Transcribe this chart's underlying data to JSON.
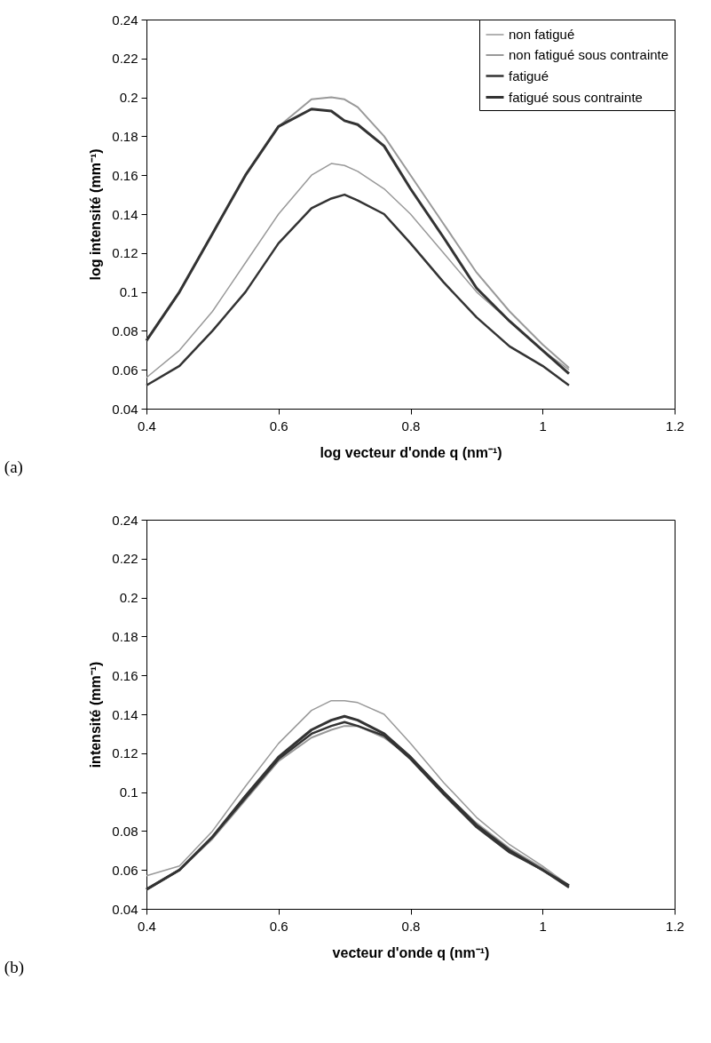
{
  "chart_data": [
    {
      "type": "line",
      "xlabel": "log vecteur d'onde q (nm⁻¹)",
      "ylabel": "log intensité (mm⁻¹)",
      "annotations": [
        "(a)"
      ],
      "xlim": [
        0.4,
        1.2
      ],
      "xticks": [
        0.4,
        0.6,
        0.8,
        1,
        1.2
      ],
      "ylim": [
        0.04,
        0.24
      ],
      "yticks": [
        0.04,
        0.06,
        0.08,
        0.1,
        0.12,
        0.14,
        0.16,
        0.18,
        0.2,
        0.22,
        0.24
      ],
      "legend": "top right",
      "grid": false,
      "marker": "none",
      "line_style": "solid",
      "x": [
        0.4,
        0.45,
        0.5,
        0.55,
        0.6,
        0.65,
        0.68,
        0.7,
        0.72,
        0.76,
        0.8,
        0.85,
        0.9,
        0.95,
        1.0,
        1.04
      ],
      "series": [
        {
          "name": "non fatigué",
          "color": "#999999",
          "values": [
            0.056,
            0.07,
            0.09,
            0.115,
            0.14,
            0.16,
            0.166,
            0.165,
            0.162,
            0.153,
            0.14,
            0.12,
            0.1,
            0.085,
            0.07,
            0.06
          ]
        },
        {
          "name": "non fatigué sous contrainte",
          "color": "#999999",
          "values": [
            0.075,
            0.1,
            0.13,
            0.16,
            0.185,
            0.199,
            0.2,
            0.199,
            0.195,
            0.18,
            0.16,
            0.135,
            0.11,
            0.09,
            0.073,
            0.061
          ]
        },
        {
          "name": "fatigué",
          "color": "#333333",
          "values": [
            0.052,
            0.062,
            0.08,
            0.1,
            0.125,
            0.143,
            0.148,
            0.15,
            0.147,
            0.14,
            0.125,
            0.105,
            0.087,
            0.072,
            0.062,
            0.052
          ]
        },
        {
          "name": "fatigué sous contrainte",
          "color": "#333333",
          "values": [
            0.075,
            0.1,
            0.13,
            0.16,
            0.185,
            0.194,
            0.193,
            0.188,
            0.186,
            0.175,
            0.153,
            0.128,
            0.102,
            0.085,
            0.07,
            0.058
          ]
        }
      ]
    },
    {
      "type": "line",
      "xlabel": "vecteur d'onde q (nm⁻¹)",
      "ylabel": "intensité (mm⁻¹)",
      "annotations": [
        "(b)"
      ],
      "xlim": [
        0.4,
        1.2
      ],
      "xticks": [
        0.4,
        0.6,
        0.8,
        1,
        1.2
      ],
      "ylim": [
        0.04,
        0.24
      ],
      "yticks": [
        0.04,
        0.06,
        0.08,
        0.1,
        0.12,
        0.14,
        0.16,
        0.18,
        0.2,
        0.22,
        0.24
      ],
      "legend": "top right",
      "grid": false,
      "marker": "none",
      "line_style": "solid",
      "x": [
        0.4,
        0.45,
        0.5,
        0.55,
        0.6,
        0.65,
        0.68,
        0.7,
        0.72,
        0.76,
        0.8,
        0.85,
        0.9,
        0.95,
        1.0,
        1.04
      ],
      "series": [
        {
          "name": "non fatigué",
          "color": "#999999",
          "values": [
            0.057,
            0.062,
            0.08,
            0.103,
            0.125,
            0.142,
            0.147,
            0.147,
            0.146,
            0.14,
            0.125,
            0.105,
            0.087,
            0.073,
            0.062,
            0.052
          ]
        },
        {
          "name": "non fatigué sous contrainte",
          "color": "#999999",
          "values": [
            0.05,
            0.06,
            0.076,
            0.096,
            0.116,
            0.128,
            0.132,
            0.134,
            0.134,
            0.128,
            0.118,
            0.1,
            0.084,
            0.071,
            0.061,
            0.052
          ]
        },
        {
          "name": "fatigué",
          "color": "#333333",
          "values": [
            0.05,
            0.06,
            0.077,
            0.097,
            0.117,
            0.13,
            0.134,
            0.136,
            0.134,
            0.129,
            0.117,
            0.099,
            0.082,
            0.069,
            0.06,
            0.051
          ]
        },
        {
          "name": "fatigué sous contrainte",
          "color": "#333333",
          "values": [
            0.05,
            0.06,
            0.077,
            0.098,
            0.118,
            0.132,
            0.137,
            0.139,
            0.137,
            0.13,
            0.118,
            0.1,
            0.083,
            0.07,
            0.06,
            0.052
          ]
        }
      ]
    }
  ]
}
